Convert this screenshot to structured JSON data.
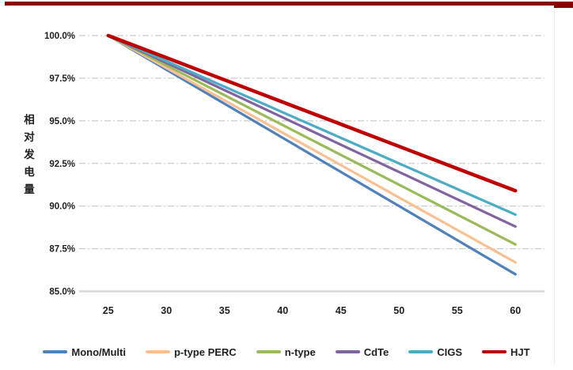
{
  "decor": {
    "banner_color": "#8B0000",
    "banner_cap_color": "#8B0000",
    "divider_color": "#EDEDED",
    "gridline_color": "#C0C0C0",
    "axis_line_color": "#D9D9D9",
    "text_color": "#1F1F1F"
  },
  "chart_data": {
    "type": "line",
    "title": "",
    "xlabel": "",
    "ylabel": "相对发电量",
    "x": [
      25,
      30,
      35,
      40,
      45,
      50,
      55,
      60
    ],
    "x_tick_labels": [
      "25",
      "30",
      "35",
      "40",
      "45",
      "50",
      "55",
      "60"
    ],
    "y_tick_labels": [
      "100.0%",
      "97.5%",
      "95.0%",
      "92.5%",
      "90.0%",
      "87.5%",
      "85.0%"
    ],
    "ylim": [
      85,
      100
    ],
    "grid": "horizontal dash-dot",
    "legend_position": "bottom",
    "series": [
      {
        "name": "Mono/Multi",
        "color": "#4F81BD",
        "line_width": 3.2,
        "values": [
          100,
          98.0,
          96.0,
          94.0,
          92.0,
          90.0,
          88.0,
          86.0
        ]
      },
      {
        "name": "p-type PERC",
        "color": "#FAC090",
        "line_width": 3.2,
        "values": [
          100,
          98.1,
          96.2,
          94.3,
          92.4,
          90.5,
          88.6,
          86.7
        ]
      },
      {
        "name": "n-type",
        "color": "#9BBB59",
        "line_width": 3.2,
        "values": [
          100,
          98.25,
          96.5,
          94.75,
          93.0,
          91.25,
          89.5,
          87.75
        ]
      },
      {
        "name": "CdTe",
        "color": "#8064A2",
        "line_width": 3.2,
        "values": [
          100,
          98.4,
          96.8,
          95.2,
          93.6,
          92.0,
          90.4,
          88.8
        ]
      },
      {
        "name": "CIGS",
        "color": "#4BACC6",
        "line_width": 3.2,
        "values": [
          100,
          98.5,
          97.0,
          95.5,
          94.0,
          92.5,
          91.0,
          89.5
        ]
      },
      {
        "name": "HJT",
        "color": "#C00000",
        "line_width": 4.5,
        "values": [
          100,
          98.7,
          97.4,
          96.1,
          94.8,
          93.5,
          92.2,
          90.9
        ]
      }
    ]
  }
}
